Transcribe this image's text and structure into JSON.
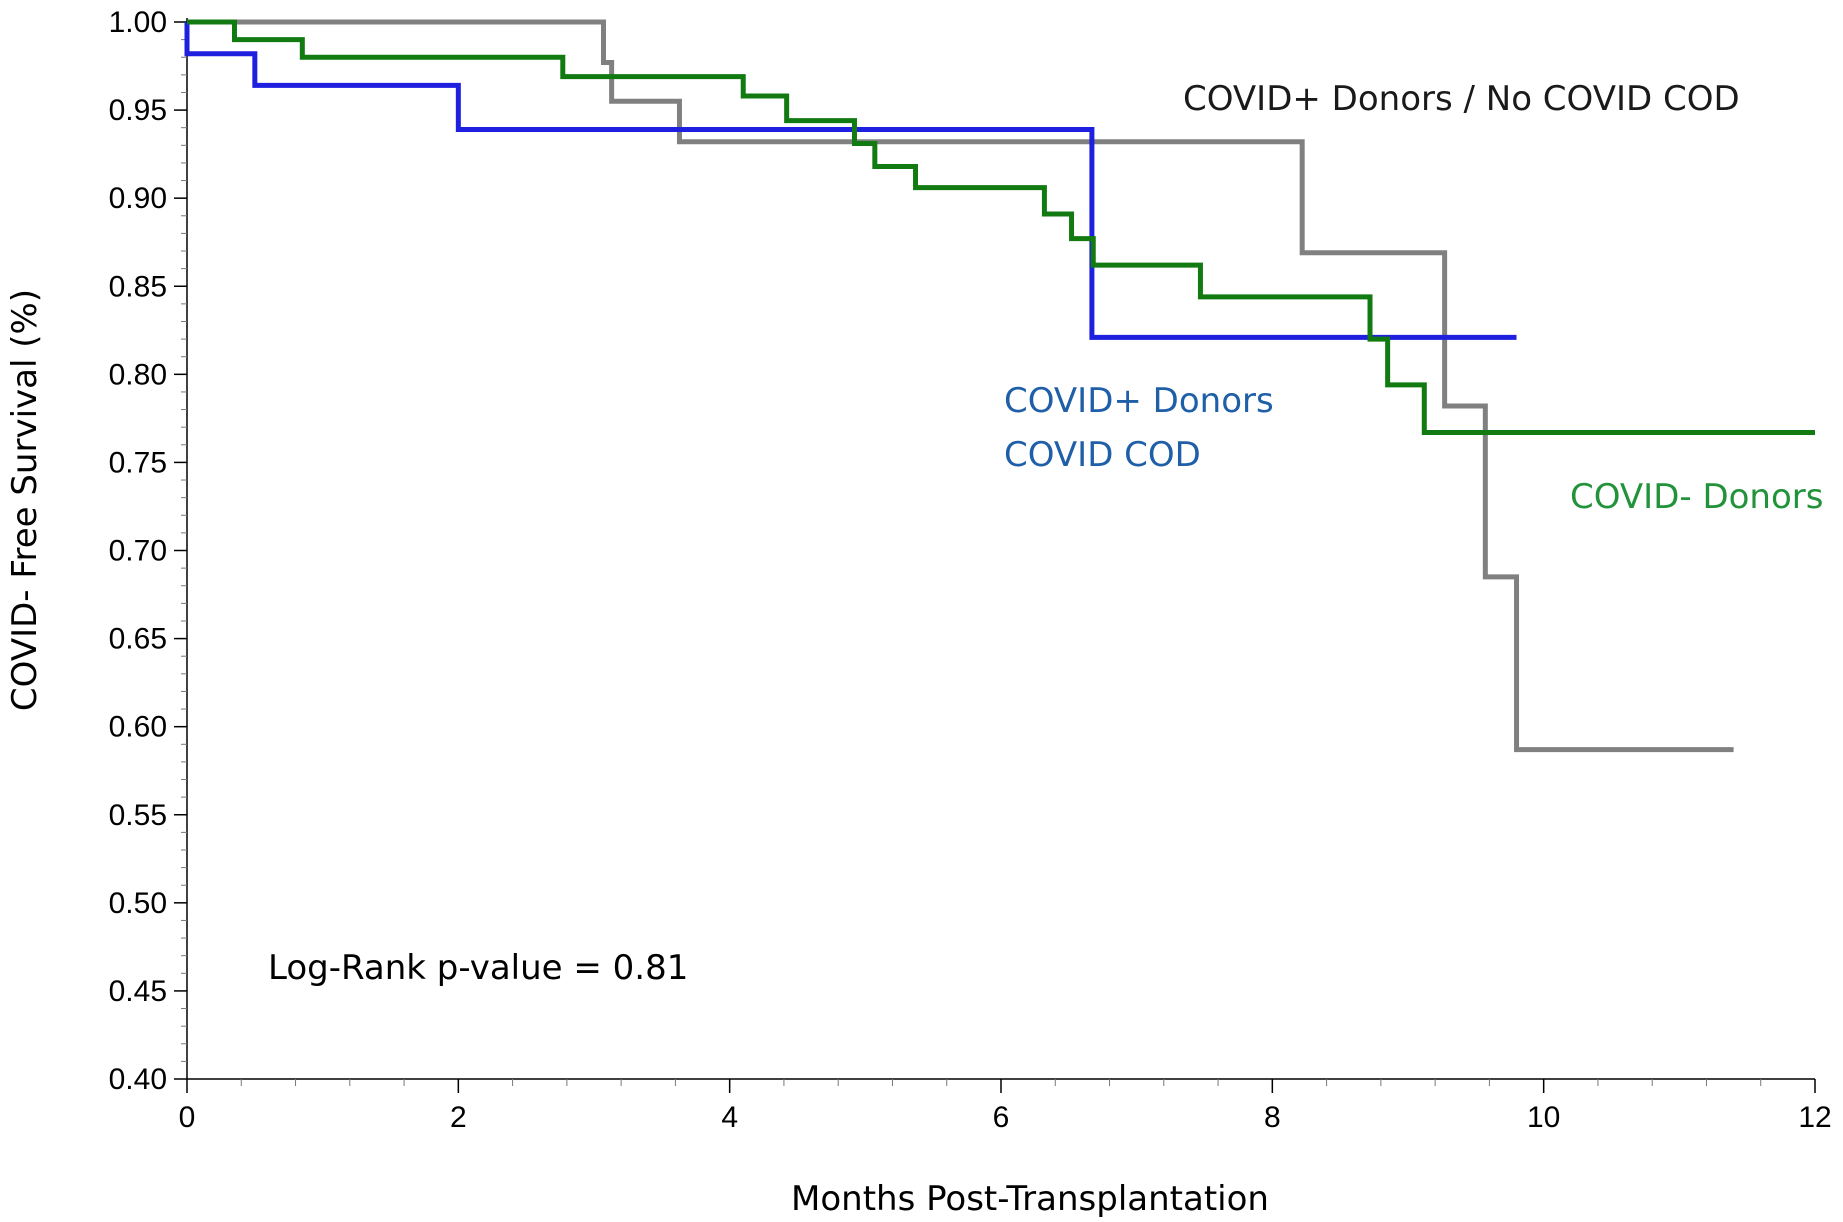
{
  "chart_data": {
    "type": "line",
    "step": true,
    "title": "",
    "xlabel": "Months Post-Transplantation",
    "ylabel": "COVID- Free Survival (%)",
    "xlim": [
      0,
      12
    ],
    "ylim": [
      0.4,
      1.0
    ],
    "x_ticks": [
      0,
      2,
      4,
      6,
      8,
      10,
      12
    ],
    "x_tick_labels": [
      "0",
      "2",
      "4",
      "6",
      "8",
      "10",
      "12"
    ],
    "y_ticks": [
      0.4,
      0.45,
      0.5,
      0.55,
      0.6,
      0.65,
      0.7,
      0.75,
      0.8,
      0.85,
      0.9,
      0.95,
      1.0
    ],
    "y_tick_labels": [
      "0.40",
      "0.45",
      "0.50",
      "0.55",
      "0.60",
      "0.65",
      "0.70",
      "0.75",
      "0.80",
      "0.85",
      "0.90",
      "0.95",
      "1.00"
    ],
    "grid": false,
    "series": [
      {
        "name": "COVID+ Donors / No COVID COD",
        "color": "#808080",
        "x": [
          0,
          3.07,
          3.13,
          3.63,
          8.22,
          9.27,
          9.57,
          9.8,
          11.4
        ],
        "y": [
          1.0,
          0.977,
          0.955,
          0.932,
          0.869,
          0.782,
          0.685,
          0.587,
          0.587
        ]
      },
      {
        "name": "COVID+ Donors COVID COD",
        "color": "#1f1fe0",
        "x": [
          0,
          0.5,
          2.0,
          6.67,
          9.8
        ],
        "y": [
          0.982,
          0.964,
          0.939,
          0.821,
          0.821
        ]
      },
      {
        "name": "COVID- Donors",
        "color": "#117a11",
        "x": [
          0,
          0.35,
          0.85,
          2.77,
          4.1,
          4.42,
          4.92,
          5.07,
          5.37,
          6.32,
          6.52,
          6.68,
          7.47,
          8.72,
          8.85,
          9.12,
          12.0
        ],
        "y": [
          1.0,
          0.99,
          0.98,
          0.969,
          0.958,
          0.944,
          0.931,
          0.918,
          0.906,
          0.891,
          0.877,
          0.862,
          0.844,
          0.82,
          0.794,
          0.767,
          0.767
        ]
      }
    ],
    "annotations": {
      "log_rank": "Log-Rank p-value = 0.81",
      "label_gray": "COVID+ Donors / No COVID COD",
      "label_blue_line1": "COVID+ Donors",
      "label_blue_line2": "COVID COD",
      "label_green": "COVID- Donors"
    },
    "annotation_colors": {
      "gray": "#1a1a1a",
      "blue": "#1f5fa8",
      "green": "#22933a"
    }
  }
}
